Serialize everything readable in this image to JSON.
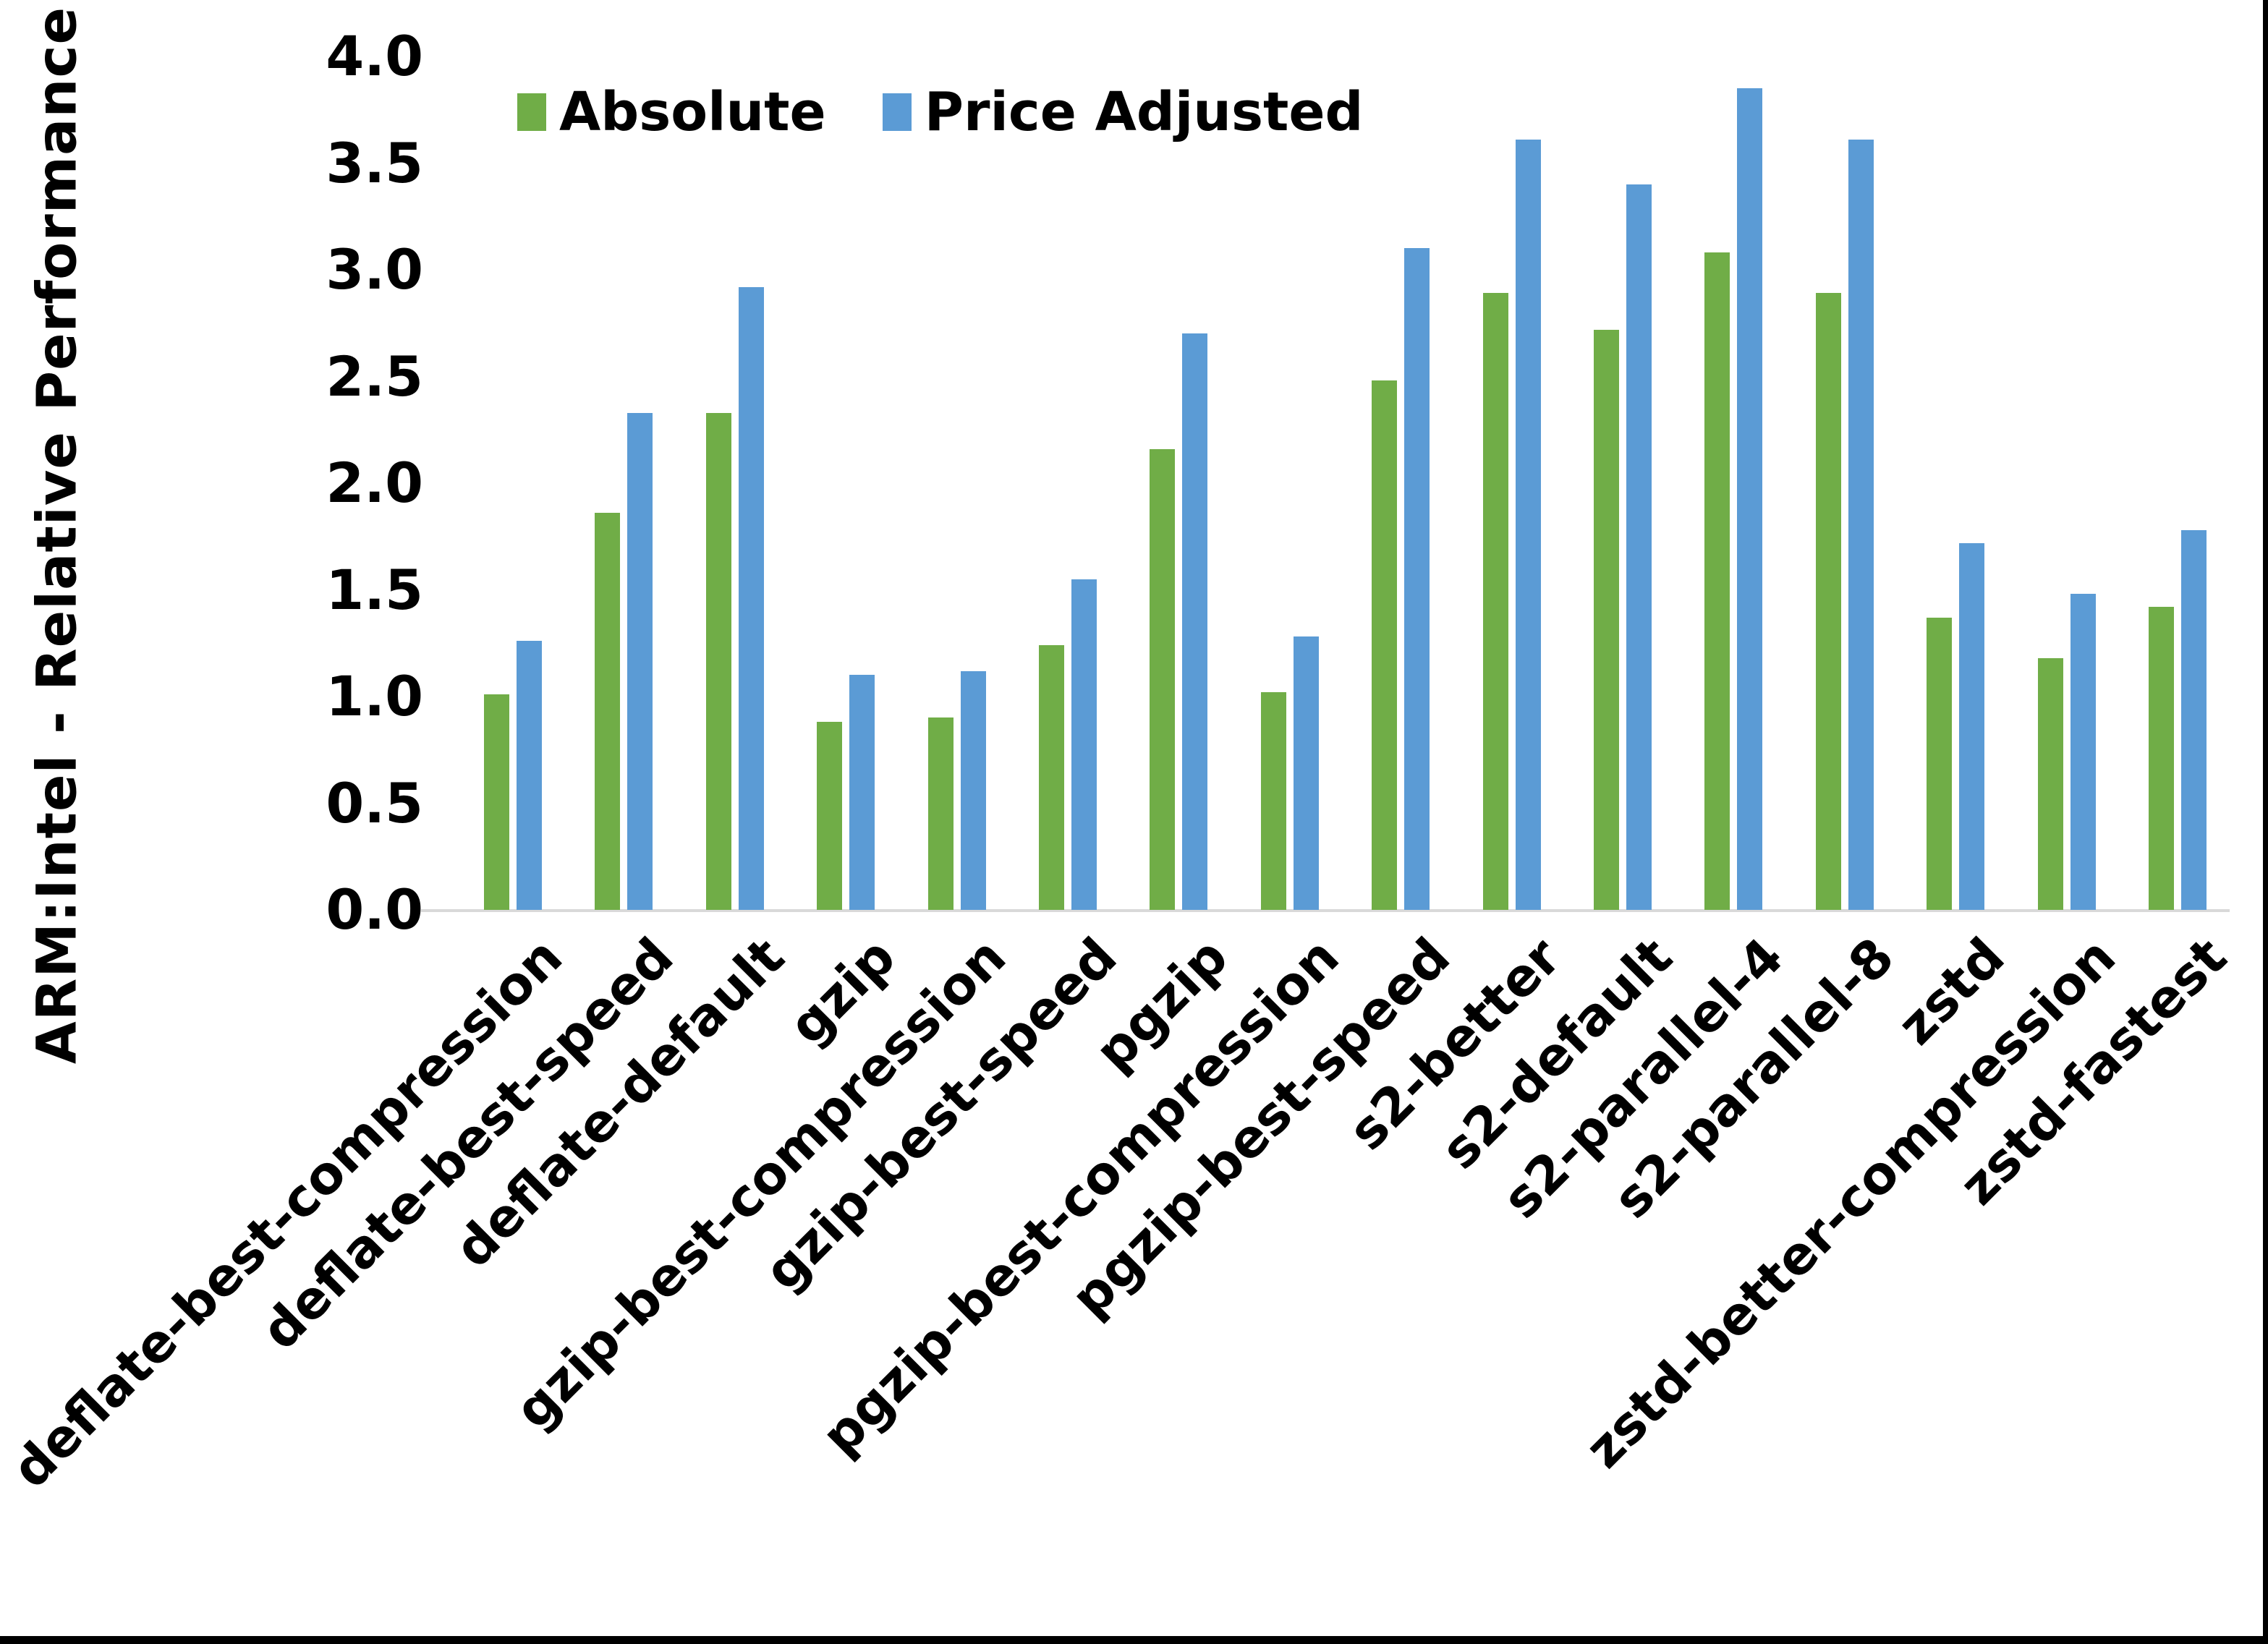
{
  "chart_data": {
    "type": "bar",
    "title": "",
    "xlabel": "",
    "ylabel": "ARM:Intel - Relative Performance",
    "ylim": [
      0.0,
      4.0
    ],
    "ytick_labels": [
      "4.0",
      "3.5",
      "3.0",
      "2.5",
      "2.0",
      "1.5",
      "1.0",
      "0.5",
      "0.0"
    ],
    "grid": false,
    "legend_position": "top-center",
    "axis_line_color": "#d9d9d9",
    "categories": [
      "deflate-best-compression",
      "deflate-best-speed",
      "deflate-default",
      "gzip",
      "gzip-best-compression",
      "gzip-best-speed",
      "pgzip",
      "pgzip-best-compression",
      "pgzip-best-speed",
      "s2-better",
      "s2-default",
      "s2-parallel-4",
      "s2-parallel-8",
      "zstd",
      "zstd-better-compression",
      "zstd-fastest"
    ],
    "series": [
      {
        "name": "Absolute",
        "color": "#70AD47",
        "values": [
          1.01,
          1.86,
          2.33,
          0.88,
          0.9,
          1.24,
          2.16,
          1.02,
          2.48,
          2.89,
          2.72,
          3.08,
          2.89,
          1.37,
          1.18,
          1.42
        ]
      },
      {
        "name": "Price Adjusted",
        "color": "#5B9BD5",
        "values": [
          1.26,
          2.33,
          2.92,
          1.1,
          1.12,
          1.55,
          2.7,
          1.28,
          3.1,
          3.61,
          3.4,
          3.85,
          3.61,
          1.72,
          1.48,
          1.78
        ]
      }
    ]
  }
}
